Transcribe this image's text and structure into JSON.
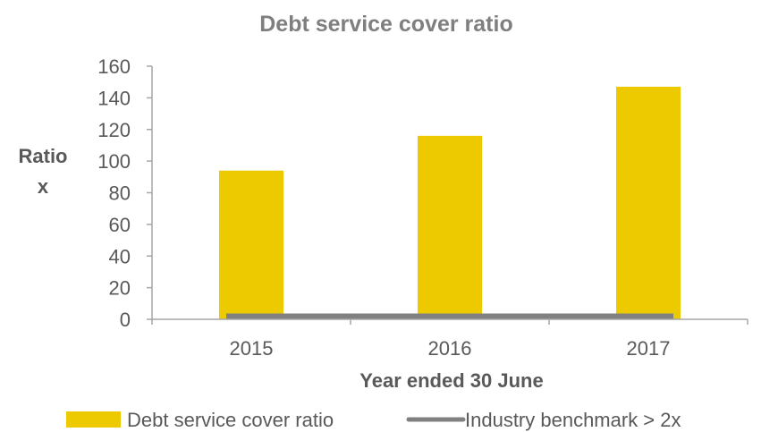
{
  "chart_data": {
    "type": "bar",
    "title": "Debt service cover ratio",
    "xlabel": "Year ended 30 June",
    "ylabel_lines": [
      "Ratio",
      "x"
    ],
    "categories": [
      "2015",
      "2016",
      "2017"
    ],
    "ylim": [
      0,
      160
    ],
    "yticks": [
      0,
      20,
      40,
      60,
      80,
      100,
      120,
      140,
      160
    ],
    "series": [
      {
        "name": "Debt service cover ratio",
        "kind": "bar",
        "values": [
          94,
          116,
          147
        ],
        "color": "#EDCA00"
      },
      {
        "name": "Industry benchmark > 2x",
        "kind": "line",
        "values": [
          2,
          2,
          2
        ],
        "color": "#808080"
      }
    ],
    "grid": false,
    "legend_position": "bottom"
  }
}
